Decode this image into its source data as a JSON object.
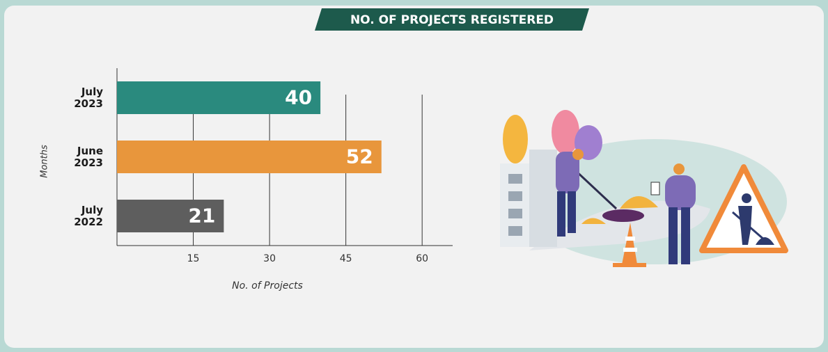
{
  "chart_data": {
    "type": "bar",
    "orientation": "horizontal",
    "title": "NO. OF PROJECTS REGISTERED",
    "x_label": "No. of Projects",
    "y_label": "Months",
    "categories": [
      "July 2023",
      "June 2023",
      "July 2022"
    ],
    "values": [
      40,
      52,
      21
    ],
    "colors": [
      "#2a8a7e",
      "#e8963c",
      "#5e5e5e"
    ],
    "xlim": [
      0,
      66
    ],
    "xticks": [
      15,
      30,
      45,
      60
    ],
    "grid": true
  }
}
